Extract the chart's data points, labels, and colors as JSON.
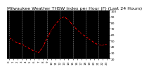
{
  "title": "Milwaukee Weather THSW Index per Hour (F) (Last 24 Hours)",
  "hours": [
    0,
    1,
    2,
    3,
    4,
    5,
    6,
    7,
    8,
    9,
    10,
    11,
    12,
    13,
    14,
    15,
    16,
    17,
    18,
    19,
    20,
    21,
    22,
    23
  ],
  "values": [
    55,
    50,
    46,
    44,
    40,
    36,
    32,
    30,
    40,
    55,
    68,
    78,
    86,
    90,
    84,
    76,
    68,
    62,
    57,
    52,
    47,
    43,
    42,
    44
  ],
  "line_color": "#ff0000",
  "marker_color": "#000000",
  "bg_color": "#ffffff",
  "plot_bg_color": "#000000",
  "grid_color": "#888888",
  "ylim": [
    20,
    100
  ],
  "yticks": [
    20,
    30,
    40,
    50,
    60,
    70,
    80,
    90,
    100
  ],
  "ytick_labels": [
    "20",
    "30",
    "40",
    "50",
    "60",
    "70",
    "80",
    "90",
    "100"
  ],
  "title_fontsize": 4.5,
  "tick_fontsize": 3.2,
  "grid_hours": [
    0,
    3,
    6,
    9,
    12,
    15,
    18,
    21
  ]
}
